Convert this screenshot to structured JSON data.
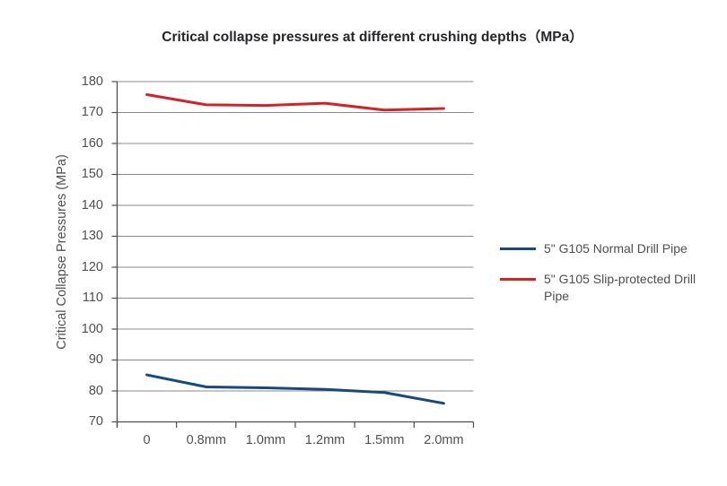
{
  "chart_data": {
    "type": "line",
    "title": "Critical collapse pressures at different crushing depths（MPa）",
    "xlabel": "",
    "ylabel": "Critical Collapse Pressures (MPa)",
    "categories": [
      "0",
      "0.8mm",
      "1.0mm",
      "1.2mm",
      "1.5mm",
      "2.0mm"
    ],
    "series": [
      {
        "name": "5\" G105 Normal Drill Pipe",
        "color": "#17497c",
        "values": [
          85.2,
          81.3,
          81.0,
          80.5,
          79.5,
          76.0
        ]
      },
      {
        "name": "5\" G105 Slip-protected Drill Pipe",
        "color": "#d2232a",
        "values": [
          175.8,
          172.5,
          172.3,
          173.0,
          170.8,
          171.3
        ]
      }
    ],
    "ylim": [
      70,
      180
    ],
    "y_ticks": [
      70,
      80,
      90,
      100,
      110,
      120,
      130,
      140,
      150,
      160,
      170,
      180
    ],
    "grid": "horizontal",
    "legend_position": "right"
  },
  "colors": {
    "grid": "#8b8b8b",
    "axis": "#4d4d4d",
    "text": "#4e4f53",
    "title": "#26262a",
    "background": "#ffffff"
  }
}
